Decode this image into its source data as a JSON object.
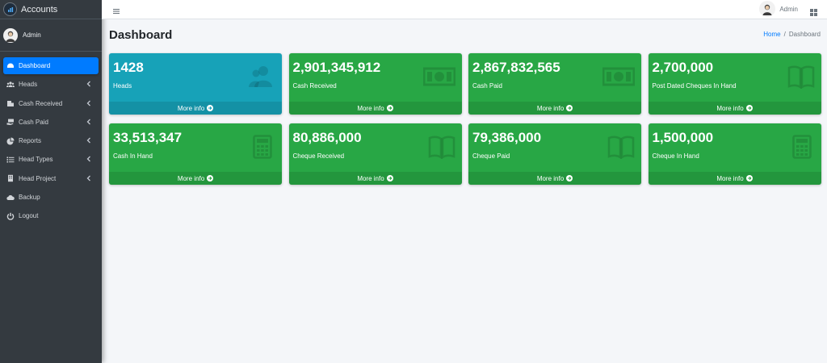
{
  "brand": {
    "name": "Accounts"
  },
  "user": {
    "name": "Admin"
  },
  "sidebar": {
    "items": [
      {
        "label": "Dashboard",
        "icon": "dashboard-icon",
        "active": true,
        "has_children": false
      },
      {
        "label": "Heads",
        "icon": "users-icon",
        "active": false,
        "has_children": true
      },
      {
        "label": "Cash Received",
        "icon": "building-icon",
        "active": false,
        "has_children": true
      },
      {
        "label": "Cash Paid",
        "icon": "money-hand-icon",
        "active": false,
        "has_children": true
      },
      {
        "label": "Reports",
        "icon": "pie-chart-icon",
        "active": false,
        "has_children": true
      },
      {
        "label": "Head Types",
        "icon": "list-icon",
        "active": false,
        "has_children": true
      },
      {
        "label": "Head Project",
        "icon": "building-icon",
        "active": false,
        "has_children": true
      },
      {
        "label": "Backup",
        "icon": "cloud-icon",
        "active": false,
        "has_children": false
      },
      {
        "label": "Logout",
        "icon": "power-icon",
        "active": false,
        "has_children": false
      }
    ]
  },
  "topbar": {
    "user_name": "Admin"
  },
  "page": {
    "title": "Dashboard",
    "breadcrumb": {
      "home": "Home",
      "separator": "/",
      "current": "Dashboard"
    }
  },
  "boxes": [
    {
      "value": "1428",
      "label": "Heads",
      "footer": "More info",
      "color": "#17a2b8",
      "icon": "users-icon"
    },
    {
      "value": "2,901,345,912",
      "label": "Cash Received",
      "footer": "More info",
      "color": "#28a745",
      "icon": "money-bill-icon"
    },
    {
      "value": "2,867,832,565",
      "label": "Cash Paid",
      "footer": "More info",
      "color": "#28a745",
      "icon": "money-bill-icon"
    },
    {
      "value": "2,700,000",
      "label": "Post Dated Cheques In Hand",
      "footer": "More info",
      "color": "#28a745",
      "icon": "book-open-icon"
    },
    {
      "value": "33,513,347",
      "label": "Cash In Hand",
      "footer": "More info",
      "color": "#28a745",
      "icon": "calculator-icon"
    },
    {
      "value": "80,886,000",
      "label": "Cheque Received",
      "footer": "More info",
      "color": "#28a745",
      "icon": "book-open-icon"
    },
    {
      "value": "79,386,000",
      "label": "Cheque Paid",
      "footer": "More info",
      "color": "#28a745",
      "icon": "book-open-icon"
    },
    {
      "value": "1,500,000",
      "label": "Cheque In Hand",
      "footer": "More info",
      "color": "#28a745",
      "icon": "calculator-icon"
    }
  ]
}
